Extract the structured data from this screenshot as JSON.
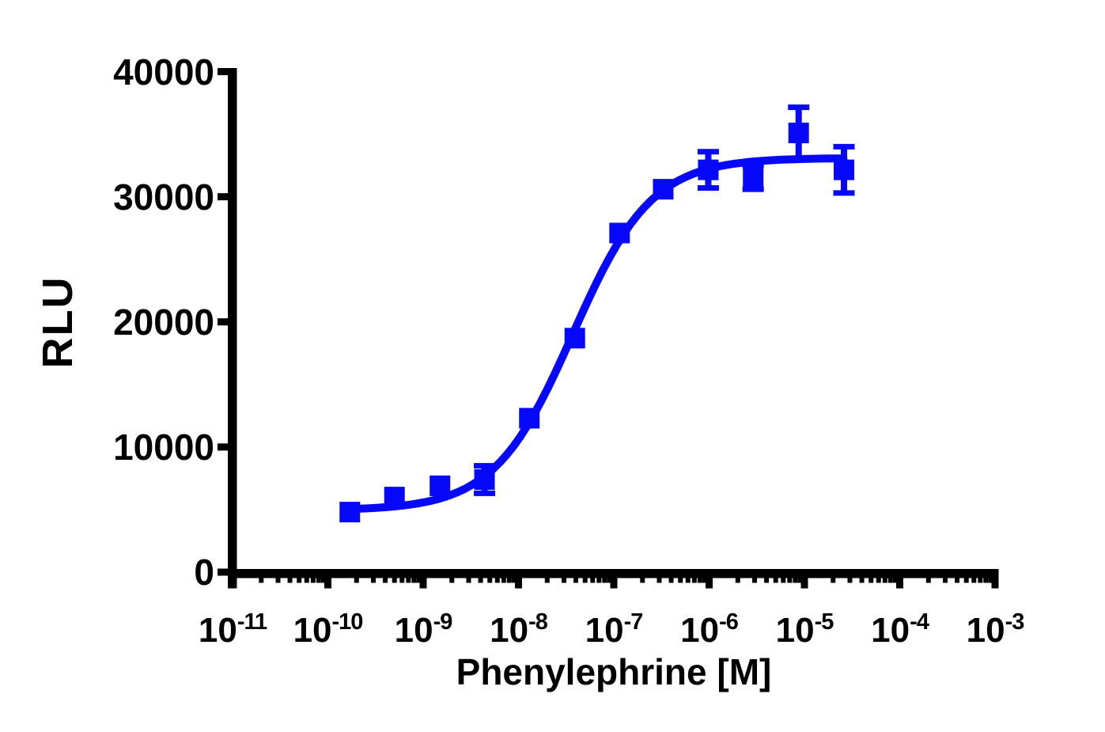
{
  "figure": {
    "background": "#ffffff",
    "axis_color": "#000000",
    "series_color": "#0707FA"
  },
  "chart_data": {
    "type": "scatter",
    "title": "",
    "xlabel": "Phenylephrine [M]",
    "ylabel": "RLU",
    "x_scale": "log10",
    "xlim_log": [
      -11,
      -3
    ],
    "ylim": [
      0,
      40000
    ],
    "grid": false,
    "legend": "none",
    "x_tick_exponents": [
      -11,
      -10,
      -9,
      -8,
      -7,
      -6,
      -5,
      -4,
      -3
    ],
    "y_ticks": [
      40000,
      30000,
      20000,
      10000,
      0
    ],
    "series": [
      {
        "name": "Phenylephrine",
        "marker": "square",
        "color": "#0707FA",
        "points": [
          {
            "conc_M": 1.7e-10,
            "rlu": 4800,
            "sem": 0
          },
          {
            "conc_M": 5e-10,
            "rlu": 6000,
            "sem": 0
          },
          {
            "conc_M": 1.5e-09,
            "rlu": 6900,
            "sem": 0
          },
          {
            "conc_M": 4.4e-09,
            "rlu": 7400,
            "sem": 1100
          },
          {
            "conc_M": 1.3e-08,
            "rlu": 12300,
            "sem": 0
          },
          {
            "conc_M": 3.9e-08,
            "rlu": 18700,
            "sem": 0
          },
          {
            "conc_M": 1.15e-07,
            "rlu": 27100,
            "sem": 0
          },
          {
            "conc_M": 3.3e-07,
            "rlu": 30600,
            "sem": 0
          },
          {
            "conc_M": 9.8e-07,
            "rlu": 32150,
            "sem": 1450
          },
          {
            "conc_M": 2.9e-06,
            "rlu": 31550,
            "sem": 950
          },
          {
            "conc_M": 8.7e-06,
            "rlu": 35100,
            "sem": 2050
          },
          {
            "conc_M": 2.6e-05,
            "rlu": 32150,
            "sem": 1850
          }
        ]
      }
    ],
    "fit": {
      "model": "log(agonist) vs. response (sigmoidal)",
      "bottom": 4950,
      "top": 33100,
      "log_ec50": -7.43,
      "hill": 1.05,
      "draw_range_log": [
        -9.78,
        -4.59
      ]
    }
  }
}
